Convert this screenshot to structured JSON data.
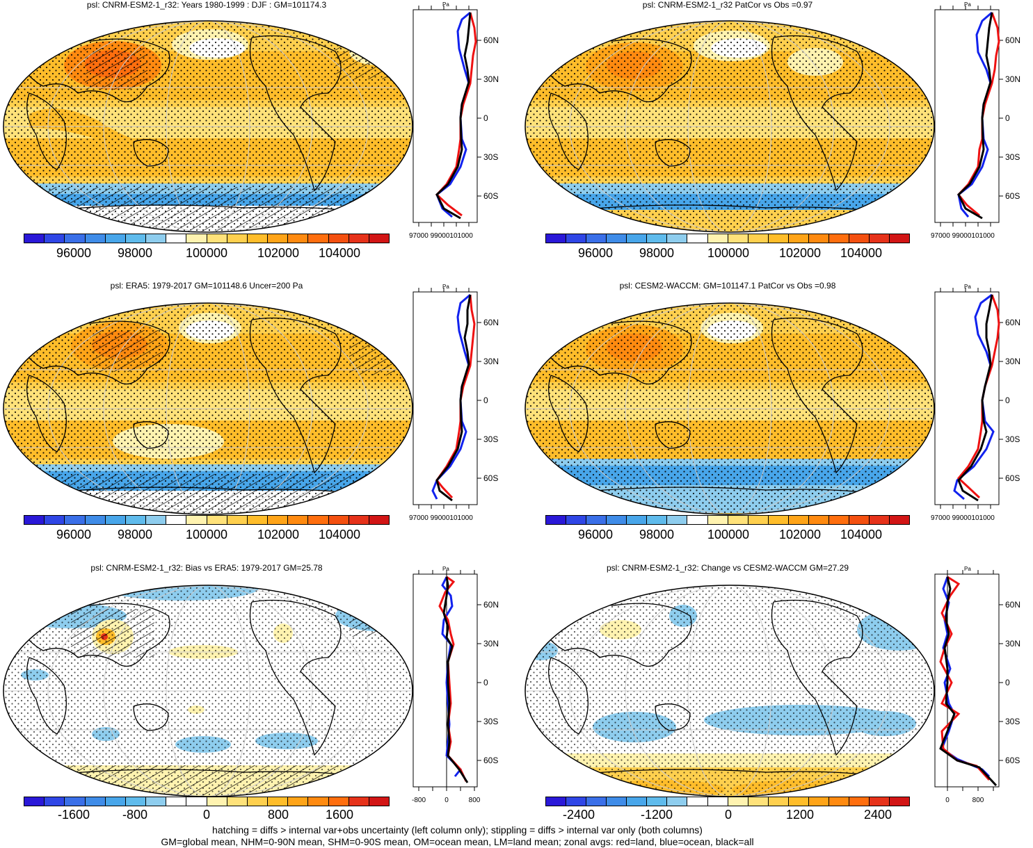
{
  "colors": {
    "abs_scale": [
      "#2a18d8",
      "#2f46e6",
      "#3a6fe8",
      "#3f8ce8",
      "#48a6ea",
      "#5fbbec",
      "#8ecdee",
      "#ffffff",
      "#fff3b0",
      "#ffe27a",
      "#ffd04e",
      "#ffbd2a",
      "#ffa418",
      "#ff8a10",
      "#ff6e0e",
      "#f45010",
      "#e6321a",
      "#d21515"
    ],
    "diff_scale": [
      "#2a18d8",
      "#2f46e6",
      "#3a6fe8",
      "#3f8ce8",
      "#48a6ea",
      "#5fbbec",
      "#8ecdee",
      "#ffffff",
      "#ffffff",
      "#fff3b0",
      "#ffe27a",
      "#ffd04e",
      "#ffbd2a",
      "#ffa418",
      "#ff8a10",
      "#ff6e0e",
      "#e6321a",
      "#d21515"
    ],
    "land": "#000000",
    "zonal_red": "#ee1111",
    "zonal_blue": "#1122ee",
    "zonal_black": "#000000"
  },
  "panels": [
    {
      "id": "p1",
      "title": "psl: CNRM-ESM2-1_r32: Years 1980-1999 : DJF : GM=101174.3",
      "kind": "abs",
      "hatch": true
    },
    {
      "id": "p2",
      "title": "psl: CNRM-ESM2-1_r32 PatCor vs Obs =0.97",
      "kind": "abs",
      "hatch": false
    },
    {
      "id": "p3",
      "title": "psl: ERA5: 1979-2017 GM=101148.6 Uncer=200 Pa",
      "kind": "abs",
      "hatch": true
    },
    {
      "id": "p4",
      "title": "psl: CESM2-WACCM: GM=101147.1 PatCor vs Obs =0.98",
      "kind": "abs",
      "hatch": false
    },
    {
      "id": "p5",
      "title": "psl: CNRM-ESM2-1_r32: Bias vs ERA5: 1979-2017 GM=25.78",
      "kind": "diff",
      "hatch": true
    },
    {
      "id": "p6",
      "title": "psl: CNRM-ESM2-1_r32: Change vs CESM2-WACCM GM=27.29",
      "kind": "diff",
      "hatch": false
    }
  ],
  "colorbars": {
    "abs": {
      "labels": [
        "96000",
        "98000",
        "100000",
        "102000",
        "104000"
      ]
    },
    "bias": {
      "labels": [
        "-1600",
        "-800",
        "0",
        "800",
        "1600"
      ]
    },
    "change": {
      "labels": [
        "-2400",
        "-1200",
        "0",
        "1200",
        "2400"
      ]
    }
  },
  "zonal": {
    "units": "Pa",
    "lat_labels": [
      "60N",
      "30N",
      "0",
      "30S",
      "60S"
    ],
    "abs_x_labels": "97000 99000101000",
    "bias_x_labels": [
      "-800",
      "0",
      "800"
    ],
    "change_x_labels": [
      "0",
      "800"
    ]
  },
  "footer": {
    "line1": "hatching = diffs > internal var+obs uncertainty (left column only); stippling = diffs > internal var only (both columns)",
    "line2": "GM=global mean, NHM=0-90N mean, SHM=0-90S mean, OM=ocean mean, LM=land mean; zonal avgs: red=land, blue=ocean, black=all"
  }
}
